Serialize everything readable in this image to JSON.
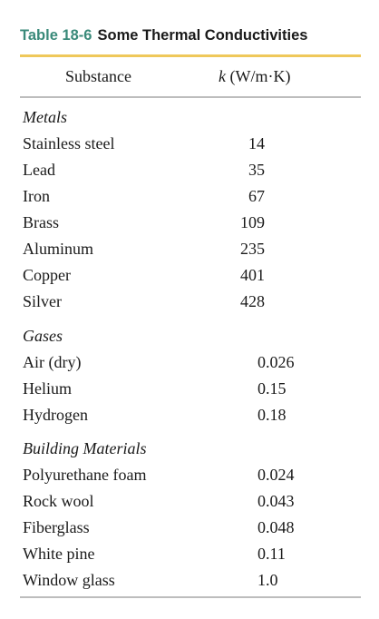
{
  "table": {
    "number": "Table 18-6",
    "title": "Some Thermal Conductivities",
    "col_substance": "Substance",
    "col_k_symbol": "k",
    "col_k_unit": "(W/m·K)"
  },
  "metals": {
    "heading": "Metals",
    "rows": [
      {
        "name": "Stainless steel",
        "k": "14"
      },
      {
        "name": "Lead",
        "k": "35"
      },
      {
        "name": "Iron",
        "k": "67"
      },
      {
        "name": "Brass",
        "k": "109"
      },
      {
        "name": "Aluminum",
        "k": "235"
      },
      {
        "name": "Copper",
        "k": "401"
      },
      {
        "name": "Silver",
        "k": "428"
      }
    ]
  },
  "gases": {
    "heading": "Gases",
    "rows": [
      {
        "name": "Air (dry)",
        "k": "0.026"
      },
      {
        "name": "Helium",
        "k": "0.15"
      },
      {
        "name": "Hydrogen",
        "k": "0.18"
      }
    ]
  },
  "building": {
    "heading": "Building Materials",
    "rows": [
      {
        "name": "Polyurethane foam",
        "k": "0.024"
      },
      {
        "name": "Rock wool",
        "k": "0.043"
      },
      {
        "name": "Fiberglass",
        "k": "0.048"
      },
      {
        "name": "White pine",
        "k": "0.11"
      },
      {
        "name": "Window glass",
        "k": "1.0"
      }
    ]
  }
}
